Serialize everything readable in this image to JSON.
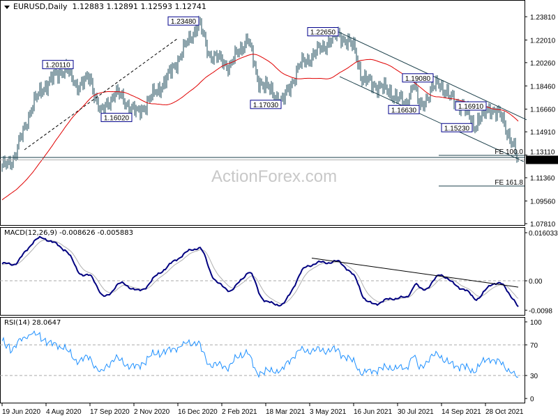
{
  "header": {
    "symbol": "EURUSD,Daily",
    "ohlc": "1.12883 1.12891 1.12593 1.12741"
  },
  "macd_label": "MACD(12,26,9) -0.008626 -0.005883",
  "rsi_label": "RSI(14) 28.0647",
  "watermark": "ActionForex.com",
  "current_price": "1.12741",
  "colors": {
    "bars": "#1b4a5a",
    "ma": "#e00000",
    "macd": "#000080",
    "signal": "#b0b0b0",
    "rsi": "#1e90ff",
    "label_border": "#00008b"
  },
  "chart_data": {
    "type": "ohlc",
    "title": "EURUSD,Daily",
    "last_bar": {
      "open": 1.12883,
      "high": 1.12891,
      "low": 1.12593,
      "close": 1.12741
    },
    "price_ticks": [
      "1.23810",
      "1.22010",
      "1.20260",
      "1.18460",
      "1.16660",
      "1.14910",
      "1.13110",
      "1.11360",
      "1.09560",
      "1.07810"
    ],
    "price_range": [
      1.0781,
      1.2381
    ],
    "date_ticks": [
      "19 Jun 2020",
      "4 Aug 2020",
      "17 Sep 2020",
      "2 Nov 2020",
      "16 Dec 2020",
      "2 Feb 2021",
      "18 Mar 2021",
      "3 May 2021",
      "16 Jun 2021",
      "30 Jul 2021",
      "14 Sep 2021",
      "28 Oct 2021"
    ],
    "bar_count": 371,
    "swing_points": [
      [
        0,
        1.121
      ],
      [
        9,
        1.13
      ],
      [
        21,
        1.168
      ],
      [
        29,
        1.183
      ],
      [
        45,
        1.199
      ],
      [
        53,
        1.185
      ],
      [
        63,
        1.19
      ],
      [
        71,
        1.163
      ],
      [
        81,
        1.18
      ],
      [
        97,
        1.163
      ],
      [
        118,
        1.19
      ],
      [
        141,
        1.2335
      ],
      [
        148,
        1.21
      ],
      [
        163,
        1.2
      ],
      [
        176,
        1.222
      ],
      [
        183,
        1.19
      ],
      [
        201,
        1.172
      ],
      [
        213,
        1.2
      ],
      [
        228,
        1.213
      ],
      [
        241,
        1.225
      ],
      [
        253,
        1.213
      ],
      [
        258,
        1.19
      ],
      [
        278,
        1.18
      ],
      [
        289,
        1.17
      ],
      [
        295,
        1.187
      ],
      [
        299,
        1.168
      ],
      [
        313,
        1.188
      ],
      [
        321,
        1.175
      ],
      [
        330,
        1.17
      ],
      [
        338,
        1.154
      ],
      [
        350,
        1.168
      ],
      [
        358,
        1.16
      ],
      [
        366,
        1.14
      ],
      [
        369,
        1.128
      ],
      [
        370,
        1.1274
      ]
    ],
    "swing_labels": [
      {
        "text": "1.20110",
        "idx": 51,
        "price": 1.2011
      },
      {
        "text": "1.16020",
        "idx": 93,
        "price": 1.1602
      },
      {
        "text": "1.23480",
        "idx": 141,
        "price": 1.2348
      },
      {
        "text": "1.17030",
        "idx": 200,
        "price": 1.1703
      },
      {
        "text": "1.22650",
        "idx": 241,
        "price": 1.2265
      },
      {
        "text": "1.19080",
        "idx": 309,
        "price": 1.1908
      },
      {
        "text": "1.16630",
        "idx": 299,
        "price": 1.1663
      },
      {
        "text": "1.16910",
        "idx": 347,
        "price": 1.1691
      },
      {
        "text": "1.15230",
        "idx": 337,
        "price": 1.1523
      }
    ],
    "trendlines": {
      "rising_dashed": [
        [
          16,
          1.1352
        ],
        [
          126,
          1.2214
        ]
      ],
      "channel_upper": [
        [
          238,
          1.2279
        ],
        [
          376,
          1.1584
        ]
      ],
      "channel_lower": [
        [
          242,
          1.1918
        ],
        [
          374,
          1.126
        ]
      ],
      "support": 1.1293
    },
    "fib_levels": [
      {
        "text": "FE 100.0",
        "price": 1.1309,
        "from_idx": 313
      },
      {
        "text": "FE 161.8",
        "price": 1.1072,
        "from_idx": 313
      }
    ],
    "moving_average_period": 55,
    "macd": {
      "params": [
        12,
        26,
        9
      ],
      "main": -0.008626,
      "signal": -0.005883,
      "ticks": [
        "0.016033",
        "0.00",
        "-0.0098"
      ],
      "range": [
        -0.0116,
        0.0179
      ],
      "trendline": [
        [
          222,
          0.00756
        ],
        [
          370,
          -0.0021
        ]
      ]
    },
    "rsi": {
      "period": 14,
      "value": 28.0647,
      "ticks": [
        "100",
        "70",
        "30",
        "0"
      ],
      "levels": [
        70,
        30
      ]
    }
  }
}
